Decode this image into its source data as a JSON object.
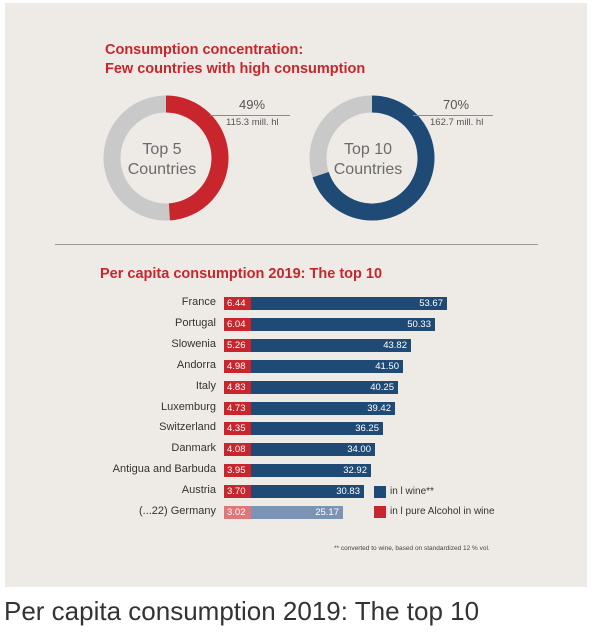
{
  "chart_data": [
    {
      "type": "pie",
      "title_lines": [
        "Consumption concentration:",
        "Few countries with high consumption"
      ],
      "center_label_lines": [
        "Top 5",
        "Countries"
      ],
      "percent_label": "49%",
      "amount_label": "115.3 mill. hl",
      "share": 49,
      "colors": {
        "share": "#c8252c",
        "rest": "#c9c9c9"
      }
    },
    {
      "type": "pie",
      "center_label_lines": [
        "Top 10",
        "Countries"
      ],
      "percent_label": "70%",
      "amount_label": "162.7 mill. hl",
      "share": 70,
      "colors": {
        "share": "#1f4a75",
        "rest": "#c9c9c9"
      }
    },
    {
      "type": "bar",
      "title": "Per capita consumption 2019: The top 10",
      "categories": [
        "France",
        "Portugal",
        "Slowenia",
        "Andorra",
        "Italy",
        "Luxemburg",
        "Switzerland",
        "Danmark",
        "Antigua and Barbuda",
        "Austria",
        "(...22) Germany"
      ],
      "series": [
        {
          "name": "in l pure Alcohol in wine",
          "values": [
            6.44,
            6.04,
            5.26,
            4.98,
            4.83,
            4.73,
            4.35,
            4.08,
            3.95,
            3.7,
            3.02
          ],
          "labels": [
            "6.44",
            "6.04",
            "5.26",
            "4.98",
            "4.83",
            "4.73",
            "4.35",
            "4.08",
            "3.95",
            "3.70",
            "3.02"
          ],
          "color": "#c8252c",
          "highlight_color": "#e0767a"
        },
        {
          "name": "in l wine**",
          "values": [
            53.67,
            50.33,
            43.82,
            41.5,
            40.25,
            39.42,
            36.25,
            34.0,
            32.92,
            30.83,
            25.17
          ],
          "labels": [
            "53.67",
            "50.33",
            "43.82",
            "41.50",
            "40.25",
            "39.42",
            "36.25",
            "34.00",
            "32.92",
            "30.83",
            "25.17"
          ],
          "color": "#1f4a75",
          "highlight_color": "#7b94b3"
        }
      ],
      "highlight_index": 10,
      "footnote": "** converted to wine, based on standardized 12 % vol.",
      "legend_placement": "bottom-right",
      "grid": false
    }
  ],
  "caption": "Per capita consumption 2019: The top 10"
}
